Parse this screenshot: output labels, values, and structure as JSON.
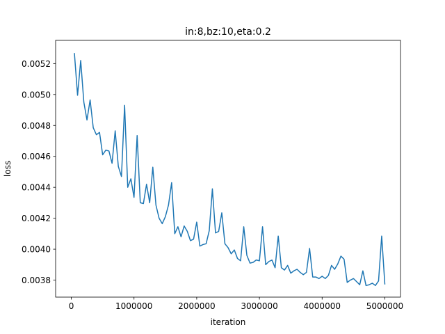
{
  "chart_data": {
    "type": "line",
    "title": "in:8,bz:10,eta:0.2",
    "xlabel": "iteration",
    "ylabel": "loss",
    "xlim": [
      -250000,
      5250000
    ],
    "ylim": [
      0.00369,
      0.00535
    ],
    "xticks": [
      0,
      1000000,
      2000000,
      3000000,
      4000000,
      5000000
    ],
    "xtick_labels": [
      "0",
      "1000000",
      "2000000",
      "3000000",
      "4000000",
      "5000000"
    ],
    "yticks": [
      0.0038,
      0.004,
      0.0042,
      0.0044,
      0.0046,
      0.0048,
      0.005,
      0.0052
    ],
    "ytick_labels": [
      "0.0038",
      "0.0040",
      "0.0042",
      "0.0044",
      "0.0046",
      "0.0048",
      "0.0050",
      "0.0052"
    ],
    "grid": false,
    "series": [
      {
        "color": "#1f77b4",
        "x": [
          50000,
          100000,
          150000,
          200000,
          250000,
          300000,
          350000,
          400000,
          450000,
          500000,
          550000,
          600000,
          650000,
          700000,
          750000,
          800000,
          850000,
          900000,
          950000,
          1000000,
          1050000,
          1100000,
          1150000,
          1200000,
          1250000,
          1300000,
          1350000,
          1400000,
          1450000,
          1500000,
          1550000,
          1600000,
          1650000,
          1700000,
          1750000,
          1800000,
          1850000,
          1900000,
          1950000,
          2000000,
          2050000,
          2100000,
          2150000,
          2200000,
          2250000,
          2300000,
          2350000,
          2400000,
          2450000,
          2500000,
          2550000,
          2600000,
          2650000,
          2700000,
          2750000,
          2800000,
          2850000,
          2900000,
          2950000,
          3000000,
          3050000,
          3100000,
          3150000,
          3200000,
          3250000,
          3300000,
          3350000,
          3400000,
          3450000,
          3500000,
          3550000,
          3600000,
          3650000,
          3700000,
          3750000,
          3800000,
          3850000,
          3900000,
          3950000,
          4000000,
          4050000,
          4100000,
          4150000,
          4200000,
          4250000,
          4300000,
          4350000,
          4400000,
          4450000,
          4500000,
          4550000,
          4600000,
          4650000,
          4700000,
          4750000,
          4800000,
          4850000,
          4900000,
          4950000,
          5000000
        ],
        "values": [
          0.005265,
          0.004995,
          0.00522,
          0.00495,
          0.004835,
          0.004965,
          0.004785,
          0.00474,
          0.004755,
          0.00461,
          0.00464,
          0.004635,
          0.004555,
          0.004765,
          0.004535,
          0.00447,
          0.00493,
          0.0044,
          0.004455,
          0.004335,
          0.004735,
          0.0043,
          0.004295,
          0.00442,
          0.0043,
          0.00453,
          0.004285,
          0.0042,
          0.004165,
          0.00421,
          0.004285,
          0.00443,
          0.0041,
          0.004145,
          0.00408,
          0.00415,
          0.004115,
          0.004055,
          0.004065,
          0.004175,
          0.00402,
          0.00403,
          0.004035,
          0.00412,
          0.00439,
          0.004105,
          0.004115,
          0.004235,
          0.004035,
          0.00401,
          0.00397,
          0.003995,
          0.00394,
          0.003925,
          0.004145,
          0.00396,
          0.00391,
          0.003915,
          0.00393,
          0.003925,
          0.004145,
          0.0039,
          0.00392,
          0.00393,
          0.00388,
          0.004085,
          0.00388,
          0.003865,
          0.003895,
          0.003845,
          0.00386,
          0.00387,
          0.00385,
          0.003835,
          0.00385,
          0.004005,
          0.00382,
          0.00382,
          0.00381,
          0.003825,
          0.00381,
          0.00383,
          0.003895,
          0.00387,
          0.003905,
          0.003955,
          0.003935,
          0.003785,
          0.0038,
          0.00381,
          0.00379,
          0.00377,
          0.00386,
          0.003765,
          0.00377,
          0.00378,
          0.003765,
          0.003795,
          0.004085,
          0.003775
        ]
      }
    ]
  }
}
